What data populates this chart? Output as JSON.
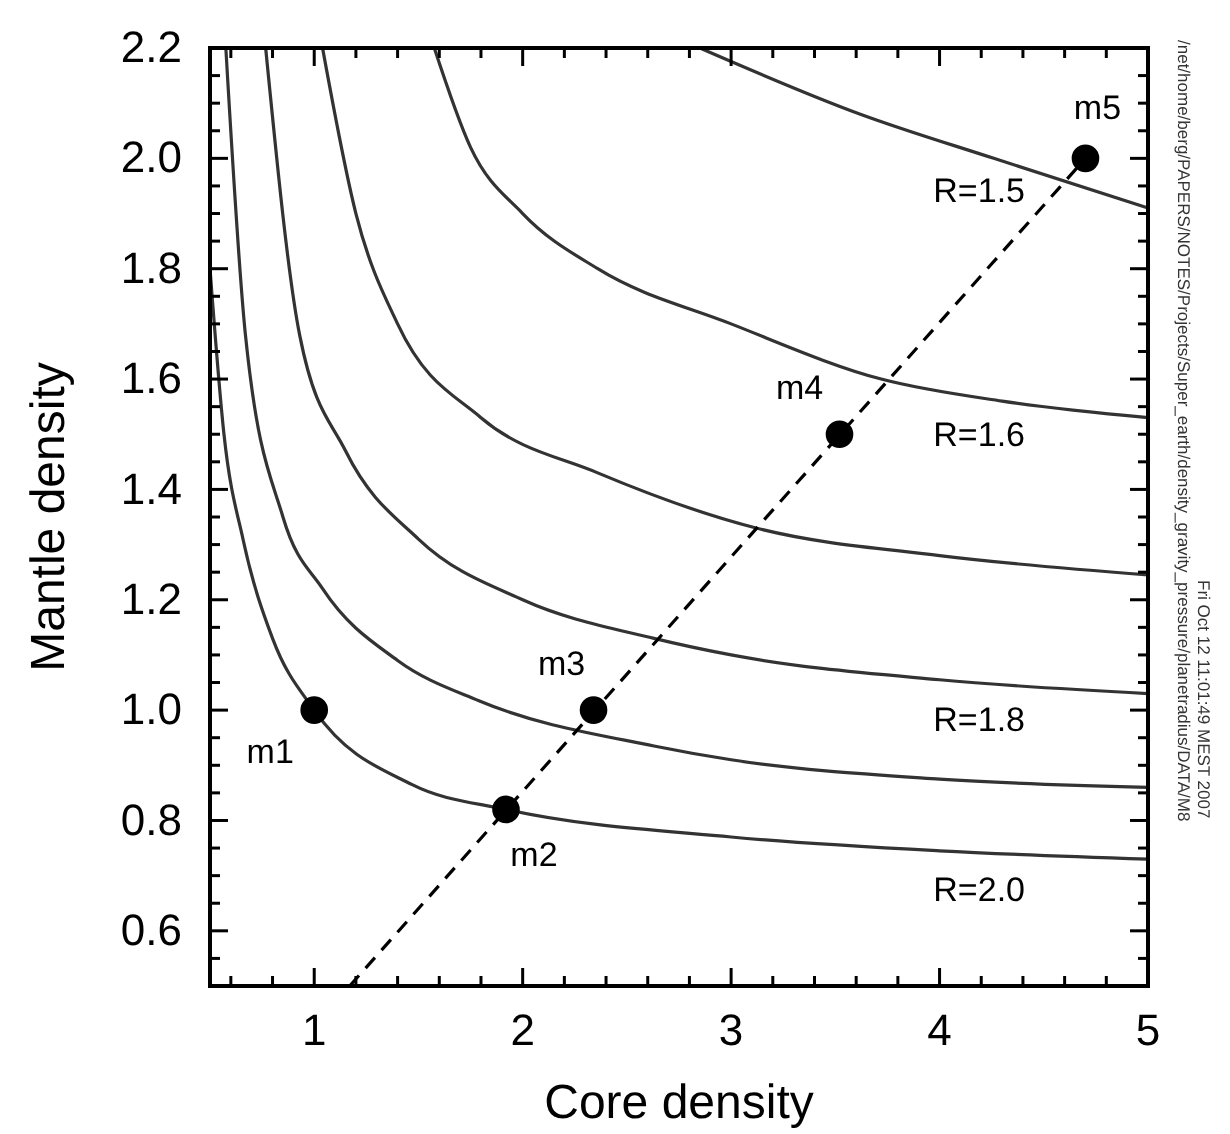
{
  "chart_data": {
    "type": "line",
    "xlabel": "Core density",
    "ylabel": "Mantle density",
    "xlim": [
      0.5,
      5
    ],
    "ylim": [
      0.5,
      2.2
    ],
    "xticks": [
      {
        "value": 0.6,
        "label": null
      },
      {
        "value": 0.8,
        "label": null
      },
      1,
      {
        "value": 1.2,
        "label": null
      },
      {
        "value": 1.4,
        "label": null
      },
      {
        "value": 1.6,
        "label": null
      },
      {
        "value": 1.8,
        "label": null
      },
      2,
      {
        "value": 2.2,
        "label": null
      },
      {
        "value": 2.4,
        "label": null
      },
      {
        "value": 2.6,
        "label": null
      },
      {
        "value": 2.8,
        "label": null
      },
      3,
      {
        "value": 3.2,
        "label": null
      },
      {
        "value": 3.4,
        "label": null
      },
      {
        "value": 3.6,
        "label": null
      },
      {
        "value": 3.8,
        "label": null
      },
      4,
      {
        "value": 4.2,
        "label": null
      },
      {
        "value": 4.4,
        "label": null
      },
      {
        "value": 4.6,
        "label": null
      },
      {
        "value": 4.8,
        "label": null
      },
      5
    ],
    "yticks": [
      {
        "value": 0.55,
        "label": null
      },
      {
        "value": 0.6,
        "label": "0.6"
      },
      {
        "value": 0.65,
        "label": null
      },
      {
        "value": 0.7,
        "label": null
      },
      {
        "value": 0.75,
        "label": null
      },
      {
        "value": 0.8,
        "label": "0.8"
      },
      {
        "value": 0.85,
        "label": null
      },
      {
        "value": 0.9,
        "label": null
      },
      {
        "value": 0.95,
        "label": null
      },
      {
        "value": 1.0,
        "label": "1.0"
      },
      {
        "value": 1.05,
        "label": null
      },
      {
        "value": 1.1,
        "label": null
      },
      {
        "value": 1.15,
        "label": null
      },
      {
        "value": 1.2,
        "label": "1.2"
      },
      {
        "value": 1.25,
        "label": null
      },
      {
        "value": 1.3,
        "label": null
      },
      {
        "value": 1.35,
        "label": null
      },
      {
        "value": 1.4,
        "label": "1.4"
      },
      {
        "value": 1.45,
        "label": null
      },
      {
        "value": 1.5,
        "label": null
      },
      {
        "value": 1.55,
        "label": null
      },
      {
        "value": 1.6,
        "label": "1.6"
      },
      {
        "value": 1.65,
        "label": null
      },
      {
        "value": 1.7,
        "label": null
      },
      {
        "value": 1.75,
        "label": null
      },
      {
        "value": 1.8,
        "label": "1.8"
      },
      {
        "value": 1.85,
        "label": null
      },
      {
        "value": 1.9,
        "label": null
      },
      {
        "value": 1.95,
        "label": null
      },
      {
        "value": 2.0,
        "label": "2.0"
      },
      {
        "value": 2.05,
        "label": null
      },
      {
        "value": 2.1,
        "label": null
      },
      {
        "value": 2.15,
        "label": null
      },
      {
        "value": 2.2,
        "label": "2.2"
      }
    ],
    "series": [
      {
        "name": "R=2.0",
        "color": "#333333",
        "x": [
          0.5,
          0.567,
          0.66,
          0.8,
          1.0,
          1.47,
          1.92,
          3,
          4,
          5
        ],
        "values": [
          1.8,
          1.5,
          1.307,
          1.13,
          1.0,
          0.865,
          0.82,
          0.77,
          0.745,
          0.73
        ]
      },
      {
        "color": "#333333",
        "x": [
          0.576,
          0.67,
          0.85,
          1.04,
          1.4,
          1.79,
          2.63,
          3,
          4,
          5
        ],
        "values": [
          2.2,
          1.68,
          1.35,
          1.22,
          1.09,
          1.017,
          0.935,
          0.91,
          0.875,
          0.86
        ]
      },
      {
        "name": "R=1.8",
        "color": "#333333",
        "x": [
          0.767,
          0.93,
          1.15,
          1.5,
          2.0,
          2.63,
          3,
          4,
          5
        ],
        "values": [
          2.2,
          1.68,
          1.47,
          1.31,
          1.2,
          1.13,
          1.1,
          1.055,
          1.03
        ]
      },
      {
        "color": "#333333",
        "x": [
          1.04,
          1.2,
          1.4,
          1.8,
          2.36,
          3.12,
          4,
          5
        ],
        "values": [
          2.2,
          1.9,
          1.7,
          1.53,
          1.43,
          1.33,
          1.28,
          1.245
        ]
      },
      {
        "name": "R=1.6",
        "color": "#333333",
        "x": [
          1.576,
          1.75,
          2.0,
          2.36,
          3.0,
          3.72,
          4.3,
          5
        ],
        "values": [
          2.2,
          2.02,
          1.9,
          1.8,
          1.7,
          1.6,
          1.56,
          1.53
        ]
      },
      {
        "name": "R=1.5",
        "color": "#333333",
        "x": [
          2.85,
          3.62,
          4.26,
          5
        ],
        "values": [
          2.2,
          2.08,
          2.0,
          1.91
        ]
      },
      {
        "color": "#000000",
        "line_style": "dashed",
        "x": [
          1.17,
          4.7
        ],
        "values": [
          0.5,
          2.0
        ]
      },
      {
        "name": "m1",
        "type": "scatter",
        "color": "#000000",
        "marker": "circle",
        "x": [
          1.0
        ],
        "values": [
          1.0
        ]
      },
      {
        "name": "m2",
        "type": "scatter",
        "color": "#000000",
        "marker": "circle",
        "x": [
          1.92
        ],
        "values": [
          0.82
        ]
      },
      {
        "name": "m3",
        "type": "scatter",
        "color": "#000000",
        "marker": "circle",
        "x": [
          2.34
        ],
        "values": [
          1.0
        ]
      },
      {
        "name": "m4",
        "type": "scatter",
        "color": "#000000",
        "marker": "circle",
        "x": [
          3.52
        ],
        "values": [
          1.5
        ]
      },
      {
        "name": "m5",
        "type": "scatter",
        "color": "#000000",
        "marker": "circle",
        "x": [
          4.7
        ],
        "values": [
          2.0
        ]
      }
    ],
    "annotations": [
      "/net/home/berg/PAPERS/NOTES/Projects/Super_earth/density_gravity_pressure/planetradius/DATA/M8",
      "Fri Oct 12 11:01:49 MEST 2007"
    ]
  }
}
